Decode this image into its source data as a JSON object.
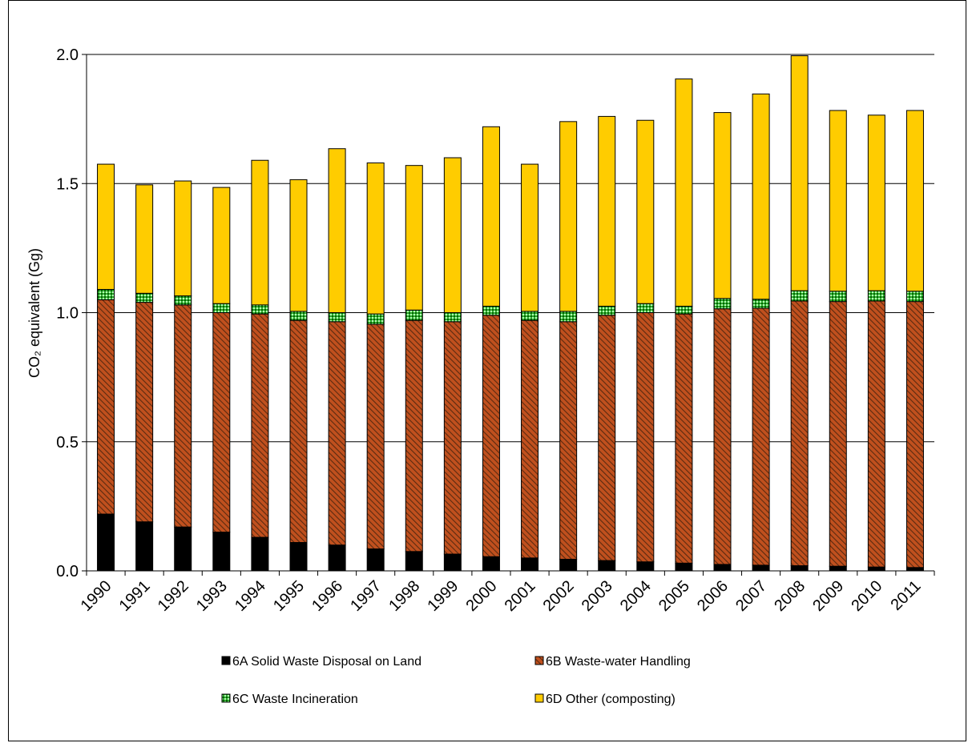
{
  "chart_data": {
    "type": "bar",
    "stacked": true,
    "ylabel": "CO₂ equivalent (Gg)",
    "ylim": [
      0,
      2.0
    ],
    "yticks": [
      "0.0",
      "0.5",
      "1.0",
      "1.5",
      "2.0"
    ],
    "grid": true,
    "legend_position": "bottom",
    "categories": [
      "1990",
      "1991",
      "1992",
      "1993",
      "1994",
      "1995",
      "1996",
      "1997",
      "1998",
      "1999",
      "2000",
      "2001",
      "2002",
      "2003",
      "2004",
      "2005",
      "2006",
      "2007",
      "2008",
      "2009",
      "2010",
      "2011"
    ],
    "series": [
      {
        "name": "6A Solid Waste Disposal on Land",
        "color": "#000000",
        "pattern": "solid",
        "values": [
          0.22,
          0.19,
          0.17,
          0.15,
          0.13,
          0.11,
          0.1,
          0.085,
          0.075,
          0.065,
          0.055,
          0.05,
          0.045,
          0.04,
          0.035,
          0.03,
          0.025,
          0.022,
          0.02,
          0.018,
          0.015,
          0.013
        ]
      },
      {
        "name": "6B Waste-water Handling",
        "color": "#c0501e",
        "pattern": "hatch",
        "values": [
          0.83,
          0.85,
          0.86,
          0.85,
          0.865,
          0.86,
          0.865,
          0.87,
          0.895,
          0.9,
          0.935,
          0.92,
          0.92,
          0.95,
          0.965,
          0.965,
          0.99,
          0.995,
          1.025,
          1.025,
          1.03,
          1.03
        ]
      },
      {
        "name": "6C Waste Incineration",
        "color": "#33cc33",
        "pattern": "dots",
        "values": [
          0.04,
          0.035,
          0.035,
          0.035,
          0.035,
          0.035,
          0.035,
          0.04,
          0.04,
          0.035,
          0.035,
          0.035,
          0.04,
          0.035,
          0.035,
          0.03,
          0.04,
          0.035,
          0.04,
          0.04,
          0.04,
          0.04
        ]
      },
      {
        "name": "6D Other (composting)",
        "color": "#ffcc00",
        "pattern": "solid",
        "values": [
          0.485,
          0.42,
          0.445,
          0.45,
          0.56,
          0.51,
          0.635,
          0.585,
          0.56,
          0.6,
          0.695,
          0.57,
          0.735,
          0.735,
          0.71,
          0.88,
          0.72,
          0.795,
          0.91,
          0.7,
          0.68,
          0.7
        ]
      }
    ]
  }
}
